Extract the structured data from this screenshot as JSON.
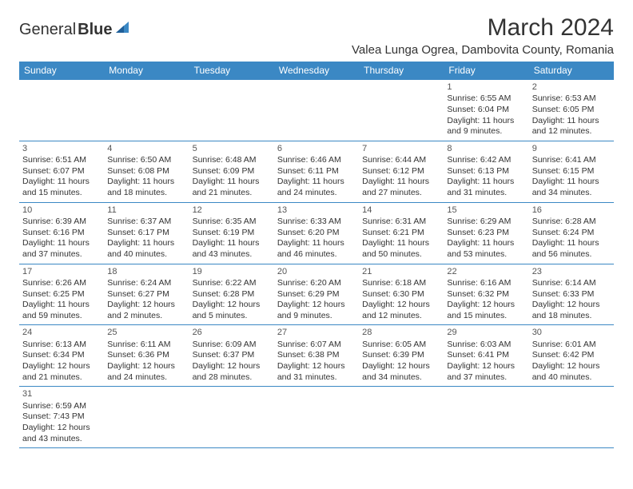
{
  "logo": {
    "part1": "General",
    "part2": "Blue"
  },
  "header": {
    "title": "March 2024",
    "location": "Valea Lunga Ogrea, Dambovita County, Romania"
  },
  "colors": {
    "header_bg": "#3b88c4",
    "header_text": "#ffffff",
    "border": "#3b88c4",
    "body_text": "#333333"
  },
  "weekdays": [
    "Sunday",
    "Monday",
    "Tuesday",
    "Wednesday",
    "Thursday",
    "Friday",
    "Saturday"
  ],
  "weeks": [
    [
      null,
      null,
      null,
      null,
      null,
      {
        "n": "1",
        "sr": "Sunrise: 6:55 AM",
        "ss": "Sunset: 6:04 PM",
        "d1": "Daylight: 11 hours",
        "d2": "and 9 minutes."
      },
      {
        "n": "2",
        "sr": "Sunrise: 6:53 AM",
        "ss": "Sunset: 6:05 PM",
        "d1": "Daylight: 11 hours",
        "d2": "and 12 minutes."
      }
    ],
    [
      {
        "n": "3",
        "sr": "Sunrise: 6:51 AM",
        "ss": "Sunset: 6:07 PM",
        "d1": "Daylight: 11 hours",
        "d2": "and 15 minutes."
      },
      {
        "n": "4",
        "sr": "Sunrise: 6:50 AM",
        "ss": "Sunset: 6:08 PM",
        "d1": "Daylight: 11 hours",
        "d2": "and 18 minutes."
      },
      {
        "n": "5",
        "sr": "Sunrise: 6:48 AM",
        "ss": "Sunset: 6:09 PM",
        "d1": "Daylight: 11 hours",
        "d2": "and 21 minutes."
      },
      {
        "n": "6",
        "sr": "Sunrise: 6:46 AM",
        "ss": "Sunset: 6:11 PM",
        "d1": "Daylight: 11 hours",
        "d2": "and 24 minutes."
      },
      {
        "n": "7",
        "sr": "Sunrise: 6:44 AM",
        "ss": "Sunset: 6:12 PM",
        "d1": "Daylight: 11 hours",
        "d2": "and 27 minutes."
      },
      {
        "n": "8",
        "sr": "Sunrise: 6:42 AM",
        "ss": "Sunset: 6:13 PM",
        "d1": "Daylight: 11 hours",
        "d2": "and 31 minutes."
      },
      {
        "n": "9",
        "sr": "Sunrise: 6:41 AM",
        "ss": "Sunset: 6:15 PM",
        "d1": "Daylight: 11 hours",
        "d2": "and 34 minutes."
      }
    ],
    [
      {
        "n": "10",
        "sr": "Sunrise: 6:39 AM",
        "ss": "Sunset: 6:16 PM",
        "d1": "Daylight: 11 hours",
        "d2": "and 37 minutes."
      },
      {
        "n": "11",
        "sr": "Sunrise: 6:37 AM",
        "ss": "Sunset: 6:17 PM",
        "d1": "Daylight: 11 hours",
        "d2": "and 40 minutes."
      },
      {
        "n": "12",
        "sr": "Sunrise: 6:35 AM",
        "ss": "Sunset: 6:19 PM",
        "d1": "Daylight: 11 hours",
        "d2": "and 43 minutes."
      },
      {
        "n": "13",
        "sr": "Sunrise: 6:33 AM",
        "ss": "Sunset: 6:20 PM",
        "d1": "Daylight: 11 hours",
        "d2": "and 46 minutes."
      },
      {
        "n": "14",
        "sr": "Sunrise: 6:31 AM",
        "ss": "Sunset: 6:21 PM",
        "d1": "Daylight: 11 hours",
        "d2": "and 50 minutes."
      },
      {
        "n": "15",
        "sr": "Sunrise: 6:29 AM",
        "ss": "Sunset: 6:23 PM",
        "d1": "Daylight: 11 hours",
        "d2": "and 53 minutes."
      },
      {
        "n": "16",
        "sr": "Sunrise: 6:28 AM",
        "ss": "Sunset: 6:24 PM",
        "d1": "Daylight: 11 hours",
        "d2": "and 56 minutes."
      }
    ],
    [
      {
        "n": "17",
        "sr": "Sunrise: 6:26 AM",
        "ss": "Sunset: 6:25 PM",
        "d1": "Daylight: 11 hours",
        "d2": "and 59 minutes."
      },
      {
        "n": "18",
        "sr": "Sunrise: 6:24 AM",
        "ss": "Sunset: 6:27 PM",
        "d1": "Daylight: 12 hours",
        "d2": "and 2 minutes."
      },
      {
        "n": "19",
        "sr": "Sunrise: 6:22 AM",
        "ss": "Sunset: 6:28 PM",
        "d1": "Daylight: 12 hours",
        "d2": "and 5 minutes."
      },
      {
        "n": "20",
        "sr": "Sunrise: 6:20 AM",
        "ss": "Sunset: 6:29 PM",
        "d1": "Daylight: 12 hours",
        "d2": "and 9 minutes."
      },
      {
        "n": "21",
        "sr": "Sunrise: 6:18 AM",
        "ss": "Sunset: 6:30 PM",
        "d1": "Daylight: 12 hours",
        "d2": "and 12 minutes."
      },
      {
        "n": "22",
        "sr": "Sunrise: 6:16 AM",
        "ss": "Sunset: 6:32 PM",
        "d1": "Daylight: 12 hours",
        "d2": "and 15 minutes."
      },
      {
        "n": "23",
        "sr": "Sunrise: 6:14 AM",
        "ss": "Sunset: 6:33 PM",
        "d1": "Daylight: 12 hours",
        "d2": "and 18 minutes."
      }
    ],
    [
      {
        "n": "24",
        "sr": "Sunrise: 6:13 AM",
        "ss": "Sunset: 6:34 PM",
        "d1": "Daylight: 12 hours",
        "d2": "and 21 minutes."
      },
      {
        "n": "25",
        "sr": "Sunrise: 6:11 AM",
        "ss": "Sunset: 6:36 PM",
        "d1": "Daylight: 12 hours",
        "d2": "and 24 minutes."
      },
      {
        "n": "26",
        "sr": "Sunrise: 6:09 AM",
        "ss": "Sunset: 6:37 PM",
        "d1": "Daylight: 12 hours",
        "d2": "and 28 minutes."
      },
      {
        "n": "27",
        "sr": "Sunrise: 6:07 AM",
        "ss": "Sunset: 6:38 PM",
        "d1": "Daylight: 12 hours",
        "d2": "and 31 minutes."
      },
      {
        "n": "28",
        "sr": "Sunrise: 6:05 AM",
        "ss": "Sunset: 6:39 PM",
        "d1": "Daylight: 12 hours",
        "d2": "and 34 minutes."
      },
      {
        "n": "29",
        "sr": "Sunrise: 6:03 AM",
        "ss": "Sunset: 6:41 PM",
        "d1": "Daylight: 12 hours",
        "d2": "and 37 minutes."
      },
      {
        "n": "30",
        "sr": "Sunrise: 6:01 AM",
        "ss": "Sunset: 6:42 PM",
        "d1": "Daylight: 12 hours",
        "d2": "and 40 minutes."
      }
    ],
    [
      {
        "n": "31",
        "sr": "Sunrise: 6:59 AM",
        "ss": "Sunset: 7:43 PM",
        "d1": "Daylight: 12 hours",
        "d2": "and 43 minutes."
      },
      null,
      null,
      null,
      null,
      null,
      null
    ]
  ]
}
